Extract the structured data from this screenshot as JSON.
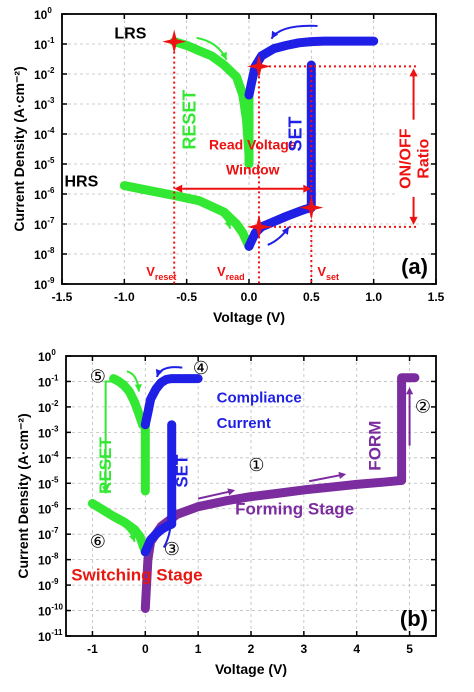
{
  "chart_data": [
    {
      "type": "line",
      "panel_label": "(a)",
      "xlabel": "Voltage (V)",
      "ylabel": "Current Density (A·cm⁻²)",
      "xlim": [
        -1.5,
        1.5
      ],
      "ylim_log10": [
        -9,
        0
      ],
      "log_y": true,
      "grid": true,
      "x_ticks": [
        "-1.5",
        "-1.0",
        "-0.5",
        "0.0",
        "0.5",
        "1.0",
        "1.5"
      ],
      "y_ticks": [
        {
          "base": "10",
          "exp": "0"
        },
        {
          "base": "10",
          "exp": "-1"
        },
        {
          "base": "10",
          "exp": "-2"
        },
        {
          "base": "10",
          "exp": "-3"
        },
        {
          "base": "10",
          "exp": "-4"
        },
        {
          "base": "10",
          "exp": "-5"
        },
        {
          "base": "10",
          "exp": "-6"
        },
        {
          "base": "10",
          "exp": "-7"
        },
        {
          "base": "10",
          "exp": "-8"
        },
        {
          "base": "10",
          "exp": "-9"
        }
      ],
      "series": [
        {
          "color": "#33e833",
          "role": "reset-lrs",
          "x": [
            -0.6,
            -0.5,
            -0.4,
            -0.3,
            -0.2,
            -0.1,
            -0.05,
            -0.02,
            0.0
          ],
          "y": [
            0.12,
            0.09,
            0.06,
            0.04,
            0.02,
            0.008,
            0.002,
            0.0003,
            2e-05
          ]
        },
        {
          "color": "#33e833",
          "role": "reset-drop",
          "x": [
            0.0,
            0.0
          ],
          "y": [
            0.002,
            1e-05
          ]
        },
        {
          "color": "#33e833",
          "role": "hrs-negative",
          "x": [
            -1.0,
            -0.8,
            -0.6,
            -0.4,
            -0.2,
            -0.1,
            -0.05,
            0.0
          ],
          "y": [
            1.9e-06,
            1.3e-06,
            9e-07,
            6e-07,
            2.5e-07,
            1e-07,
            5e-08,
            1.8e-08
          ]
        },
        {
          "color": "#1f1fe6",
          "role": "set-lrs",
          "x": [
            0.0,
            0.02,
            0.05,
            0.1,
            0.2,
            0.3,
            0.4,
            0.5,
            0.6,
            0.8,
            1.0
          ],
          "y": [
            0.002,
            0.005,
            0.018,
            0.04,
            0.07,
            0.09,
            0.11,
            0.12,
            0.125,
            0.125,
            0.125
          ]
        },
        {
          "color": "#1f1fe6",
          "role": "hrs-positive",
          "x": [
            0.0,
            0.05,
            0.1,
            0.2,
            0.3,
            0.4,
            0.45,
            0.5
          ],
          "y": [
            1.8e-08,
            5e-08,
            8e-08,
            1.2e-07,
            1.8e-07,
            2.6e-07,
            3.1e-07,
            3.5e-07
          ]
        },
        {
          "color": "#1f1fe6",
          "role": "set-jump",
          "x": [
            0.5,
            0.5
          ],
          "y": [
            3.5e-07,
            0.02
          ]
        }
      ],
      "labels": {
        "lrs": "LRS",
        "hrs": "HRS",
        "reset": "RESET",
        "set": "SET",
        "read_window_line1": "Read Voltage",
        "read_window_line2": "Window",
        "ratio_line1": "ON/OFF",
        "ratio_line2": "Ratio",
        "v_reset": {
          "base": "V",
          "sub": "reset"
        },
        "v_read": {
          "base": "V",
          "sub": "read"
        },
        "v_set": {
          "base": "V",
          "sub": "set"
        }
      },
      "markers": {
        "v_reset": -0.6,
        "v_read": 0.08,
        "v_set": 0.5
      }
    },
    {
      "type": "line",
      "panel_label": "(b)",
      "xlabel": "Voltage (V)",
      "ylabel": "Current Density (A·cm⁻²)",
      "xlim": [
        -1.5,
        5.5
      ],
      "ylim_log10": [
        -11,
        0
      ],
      "log_y": true,
      "grid": true,
      "x_ticks": [
        "-1",
        "0",
        "1",
        "2",
        "3",
        "4",
        "5"
      ],
      "y_ticks": [
        {
          "base": "10",
          "exp": "0"
        },
        {
          "base": "10",
          "exp": "-1"
        },
        {
          "base": "10",
          "exp": "-2"
        },
        {
          "base": "10",
          "exp": "-3"
        },
        {
          "base": "10",
          "exp": "-4"
        },
        {
          "base": "10",
          "exp": "-5"
        },
        {
          "base": "10",
          "exp": "-6"
        },
        {
          "base": "10",
          "exp": "-7"
        },
        {
          "base": "10",
          "exp": "-8"
        },
        {
          "base": "10",
          "exp": "-9"
        },
        {
          "base": "10",
          "exp": "-10"
        },
        {
          "base": "10",
          "exp": "-11"
        }
      ],
      "series": [
        {
          "color": "#7b2c9e",
          "role": "forming",
          "x": [
            0.0,
            0.05,
            0.1,
            0.3,
            0.6,
            1.0,
            1.5,
            2.0,
            2.5,
            3.0,
            3.5,
            4.0,
            4.5,
            4.85
          ],
          "y": [
            1.2e-10,
            1e-08,
            5e-08,
            2e-07,
            6e-07,
            1.2e-06,
            2e-06,
            3e-06,
            4e-06,
            5.5e-06,
            7e-06,
            9e-06,
            1.1e-05,
            1.3e-05
          ]
        },
        {
          "color": "#7b2c9e",
          "role": "form-jump",
          "x": [
            4.85,
            4.85,
            5.0,
            5.1
          ],
          "y": [
            1.3e-05,
            0.14,
            0.14,
            0.14
          ]
        },
        {
          "color": "#33e833",
          "role": "reset-lrs",
          "x": [
            -0.6,
            -0.5,
            -0.4,
            -0.3,
            -0.2,
            -0.1,
            -0.05,
            0.0
          ],
          "y": [
            0.13,
            0.1,
            0.07,
            0.04,
            0.015,
            0.004,
            0.002,
            0.002
          ]
        },
        {
          "color": "#33e833",
          "role": "reset-drop",
          "x": [
            0.0,
            0.0
          ],
          "y": [
            0.002,
            5e-06
          ]
        },
        {
          "color": "#33e833",
          "role": "hrs-negative",
          "x": [
            -1.0,
            -0.8,
            -0.6,
            -0.4,
            -0.2,
            -0.1,
            0.0
          ],
          "y": [
            1.6e-06,
            9e-07,
            5e-07,
            3e-07,
            1.5e-07,
            8e-08,
            2e-08
          ]
        },
        {
          "color": "#1f1fe6",
          "role": "set-lrs",
          "x": [
            0.0,
            0.05,
            0.1,
            0.2,
            0.3,
            0.4,
            0.5,
            0.6,
            0.8,
            1.0
          ],
          "y": [
            0.002,
            0.006,
            0.02,
            0.05,
            0.09,
            0.12,
            0.13,
            0.13,
            0.13,
            0.13
          ]
        },
        {
          "color": "#1f1fe6",
          "role": "hrs-positive",
          "x": [
            0.0,
            0.1,
            0.2,
            0.3,
            0.4,
            0.5
          ],
          "y": [
            2e-08,
            6e-08,
            1e-07,
            1.5e-07,
            2e-07,
            2.5e-07
          ]
        },
        {
          "color": "#1f1fe6",
          "role": "set-jump",
          "x": [
            0.5,
            0.5
          ],
          "y": [
            2.5e-07,
            0.002
          ]
        }
      ],
      "labels": {
        "compliance_line1": "Compliance",
        "compliance_line2": "Current",
        "reset": "RESET",
        "set": "SET",
        "form": "FORM",
        "forming_stage": "Forming Stage",
        "switching_stage": "Switching Stage",
        "step1": "①",
        "step2": "②",
        "step3": "③",
        "step4": "④",
        "step5": "⑤",
        "step6": "⑥"
      }
    }
  ],
  "colors": {
    "green": "#33e833",
    "blue": "#1f1fe6",
    "purple": "#7b2c9e",
    "red": "#ee1111",
    "grid": "#bdbdbd"
  }
}
